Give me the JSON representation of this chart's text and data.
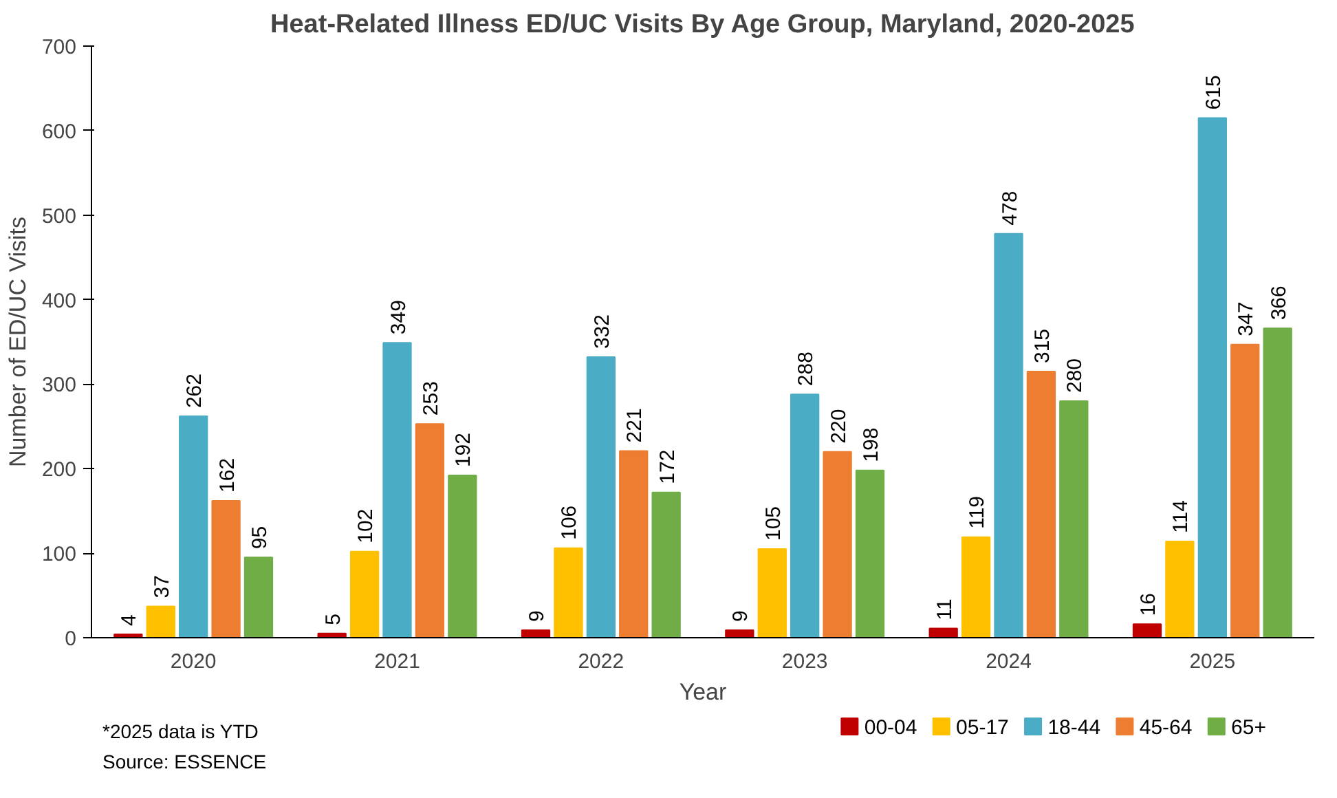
{
  "chart_data": {
    "type": "bar",
    "title": "Heat-Related Illness ED/UC Visits By Age Group, Maryland, 2020-2025",
    "xlabel": "Year",
    "ylabel": "Number of ED/UC Visits",
    "categories": [
      "2020",
      "2021",
      "2022",
      "2023",
      "2024",
      "2025"
    ],
    "series": [
      {
        "name": "00-04",
        "color": "#c00000",
        "values": [
          4,
          5,
          9,
          9,
          11,
          16
        ]
      },
      {
        "name": "05-17",
        "color": "#ffc000",
        "values": [
          37,
          102,
          106,
          105,
          119,
          114
        ]
      },
      {
        "name": "18-44",
        "color": "#4bacc6",
        "values": [
          262,
          349,
          332,
          288,
          478,
          615
        ]
      },
      {
        "name": "45-64",
        "color": "#ed7d31",
        "values": [
          162,
          253,
          221,
          220,
          315,
          347
        ]
      },
      {
        "name": "65+",
        "color": "#70ad47",
        "values": [
          95,
          192,
          172,
          198,
          280,
          366
        ]
      }
    ],
    "ylim": [
      0,
      700
    ],
    "yticks": [
      0,
      100,
      200,
      300,
      400,
      500,
      600,
      700
    ],
    "grid": false,
    "legend": "bottom right",
    "data_labels": true,
    "annotations": [
      "*2025 data is YTD",
      "Source: ESSENCE"
    ]
  }
}
